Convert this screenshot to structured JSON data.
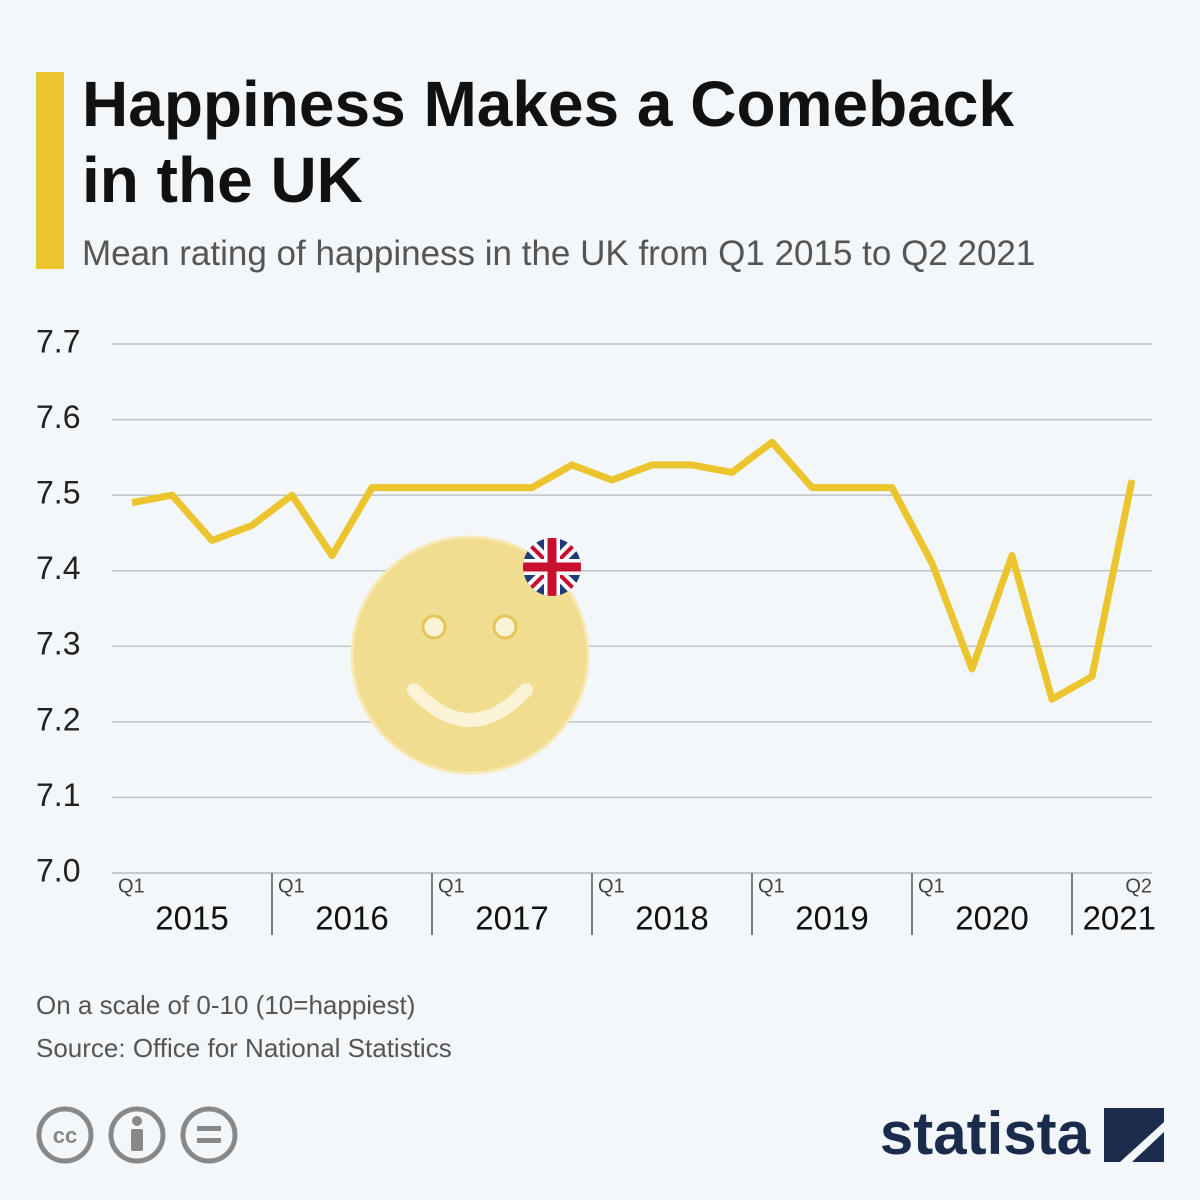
{
  "chart_data": {
    "type": "line",
    "title": "Happiness Makes a Comeback in the UK",
    "subtitle": "Mean rating of happiness in the UK from Q1 2015 to Q2 2021",
    "categories": [
      "Q1",
      null,
      null,
      null,
      "Q1",
      null,
      null,
      null,
      "Q1",
      null,
      null,
      null,
      "Q1",
      null,
      null,
      null,
      "Q1",
      null,
      null,
      null,
      "Q1",
      null,
      null,
      null,
      null,
      "Q2"
    ],
    "year_labels": [
      "2015",
      "2016",
      "2017",
      "2018",
      "2019",
      "2020",
      "2021"
    ],
    "series": [
      {
        "name": "Mean rating of happiness",
        "color": "#ecc42d",
        "values": [
          7.49,
          7.5,
          7.44,
          7.46,
          7.5,
          7.42,
          7.51,
          7.51,
          7.51,
          7.51,
          7.51,
          7.54,
          7.52,
          7.54,
          7.54,
          7.53,
          7.57,
          7.51,
          7.51,
          7.51,
          7.41,
          7.27,
          7.42,
          7.23,
          7.26,
          7.52
        ]
      }
    ],
    "ylim": [
      7.0,
      7.7
    ],
    "yticks": [
      {
        "value": 7.0,
        "label": "7.0"
      },
      7.1,
      7.2,
      7.3,
      7.4,
      7.5,
      7.6,
      7.7
    ],
    "grid": true,
    "notes": [
      "On a scale of 0-10 (10=happiest)",
      "Source: Office for National Statistics"
    ],
    "brand": "statista"
  }
}
